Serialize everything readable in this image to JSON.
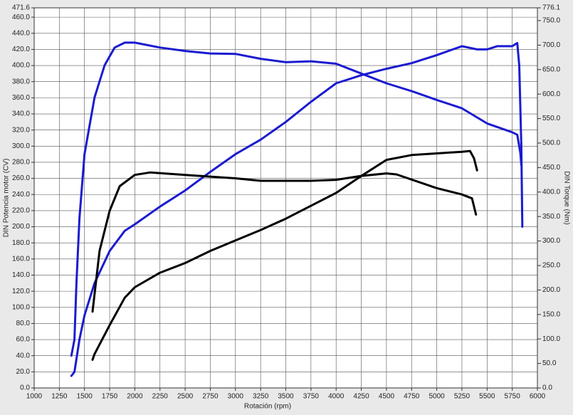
{
  "chart_data": {
    "type": "line",
    "x_label": "Rotación (rpm)",
    "y_label": "DIN Potencia motor (CV)",
    "y2_label": "DIN Torque (Nm)",
    "xlim": [
      1000,
      6000
    ],
    "xticks": [
      1000,
      1250,
      1500,
      1750,
      2000,
      2250,
      2500,
      2750,
      3000,
      3250,
      3500,
      3750,
      4000,
      4250,
      4500,
      4750,
      5000,
      5250,
      5500,
      5750,
      6000
    ],
    "ylim": [
      0,
      471.6
    ],
    "yticks": [
      {
        "value": 0,
        "label": "0.0"
      },
      {
        "value": 20,
        "label": "20.0"
      },
      {
        "value": 40,
        "label": "40.0"
      },
      {
        "value": 60,
        "label": "60.0"
      },
      {
        "value": 80,
        "label": "80.0"
      },
      {
        "value": 100,
        "label": "100.0"
      },
      {
        "value": 120,
        "label": "120.0"
      },
      {
        "value": 140,
        "label": "140.0"
      },
      {
        "value": 160,
        "label": "160.0"
      },
      {
        "value": 180,
        "label": "180.0"
      },
      {
        "value": 200,
        "label": "200.0"
      },
      {
        "value": 220,
        "label": "220.0"
      },
      {
        "value": 240,
        "label": "240.0"
      },
      {
        "value": 260,
        "label": "260.0"
      },
      {
        "value": 280,
        "label": "280.0"
      },
      {
        "value": 300,
        "label": "300.0"
      },
      {
        "value": 320,
        "label": "320.0"
      },
      {
        "value": 340,
        "label": "340.0"
      },
      {
        "value": 360,
        "label": "360.0"
      },
      {
        "value": 380,
        "label": "380.0"
      },
      {
        "value": 400,
        "label": "400.0"
      },
      {
        "value": 420,
        "label": "420.0"
      },
      {
        "value": 440,
        "label": "440.0"
      },
      {
        "value": 460,
        "label": "460.0"
      },
      471.6
    ],
    "y2lim": [
      0,
      776.1
    ],
    "y2ticks": [
      {
        "value": 0,
        "label": "0.0"
      },
      {
        "value": 50,
        "label": "50.0"
      },
      {
        "value": 100,
        "label": "100.0"
      },
      {
        "value": 150,
        "label": "150.0"
      },
      {
        "value": 200,
        "label": "200.0"
      },
      {
        "value": 250,
        "label": "250.0"
      },
      {
        "value": 300,
        "label": "300.0"
      },
      {
        "value": 350,
        "label": "350.0"
      },
      {
        "value": 400,
        "label": "400.0"
      },
      {
        "value": 450,
        "label": "450.0"
      },
      {
        "value": 500,
        "label": "500.0"
      },
      {
        "value": 550,
        "label": "550.0"
      },
      {
        "value": 600,
        "label": "600.0"
      },
      {
        "value": 650,
        "label": "650.0"
      },
      {
        "value": 700,
        "label": "700.0"
      },
      {
        "value": 750,
        "label": "750.0"
      },
      776.1
    ],
    "grid": true,
    "series": [
      {
        "color": "#1b1bd0",
        "x": [
          1370,
          1400,
          1450,
          1500,
          1600,
          1750,
          1900,
          2000,
          2250,
          2500,
          2750,
          3000,
          3250,
          3500,
          3750,
          4000,
          4250,
          4500,
          4750,
          5000,
          5250,
          5400,
          5500,
          5600,
          5750,
          5800,
          5820,
          5840,
          5850
        ],
        "values": [
          15,
          20,
          60,
          90,
          130,
          170,
          195,
          203,
          225,
          245,
          268,
          290,
          308,
          330,
          355,
          378,
          388,
          396,
          403,
          413,
          424,
          420,
          420,
          424,
          424,
          428,
          400,
          300,
          200
        ]
      },
      {
        "color": "#1b1bd0",
        "axis": "y2",
        "x": [
          1370,
          1400,
          1420,
          1450,
          1500,
          1600,
          1700,
          1800,
          1900,
          2000,
          2250,
          2500,
          2750,
          3000,
          3250,
          3500,
          3750,
          4000,
          4250,
          4500,
          4750,
          5000,
          5250,
          5500,
          5750,
          5800,
          5830,
          5840
        ],
        "values": [
          66,
          99,
          214,
          346,
          477,
          593,
          659,
          695,
          705,
          705,
          695,
          688,
          683,
          682,
          672,
          665,
          667,
          662,
          642,
          622,
          606,
          588,
          571,
          540,
          522,
          517,
          480,
          455
        ]
      },
      {
        "color": "#000000",
        "x": [
          1580,
          1600,
          1750,
          1900,
          2000,
          2250,
          2500,
          2750,
          3000,
          3250,
          3500,
          3750,
          4000,
          4250,
          4500,
          4750,
          5000,
          5250,
          5330,
          5370,
          5400
        ],
        "values": [
          35,
          42,
          78,
          112,
          125,
          143,
          155,
          170,
          183,
          196,
          210,
          226,
          242,
          263,
          283,
          289,
          291,
          293,
          294,
          285,
          270
        ]
      },
      {
        "color": "#000000",
        "axis": "y2",
        "x": [
          1580,
          1650,
          1750,
          1850,
          2000,
          2150,
          2500,
          3000,
          3250,
          3750,
          4000,
          4250,
          4500,
          4600,
          5000,
          5250,
          5350,
          5390
        ],
        "values": [
          156,
          280,
          362,
          412,
          435,
          440,
          435,
          428,
          423,
          423,
          425,
          433,
          438,
          436,
          408,
          395,
          387,
          354
        ]
      }
    ]
  }
}
